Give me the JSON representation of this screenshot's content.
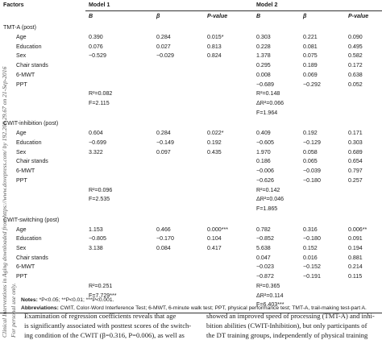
{
  "sidebar": {
    "lines": [
      "Clinical Interventions in Aging downloaded from https://www.dovepress.com/ by 192.208.29.67 on 21-Sep-2016",
      "For personal use only."
    ]
  },
  "table": {
    "header": {
      "factors": "Factors",
      "model1": "Model 1",
      "model2": "Model 2",
      "cols": [
        "B",
        "β",
        "P-value",
        "B",
        "β",
        "P-value"
      ]
    },
    "sections": [
      {
        "title": "TMT-A (post)",
        "rows": [
          {
            "name": "Age",
            "cells": [
              "0.390",
              "0.284",
              "0.015*",
              "0.303",
              "0.221",
              "0.090"
            ]
          },
          {
            "name": "Education",
            "cells": [
              "0.076",
              "0.027",
              "0.813",
              "0.228",
              "0.081",
              "0.495"
            ]
          },
          {
            "name": "Sex",
            "cells": [
              "−0.529",
              "−0.029",
              "0.824",
              "1.378",
              "0.075",
              "0.582"
            ]
          },
          {
            "name": "Chair stands",
            "cells": [
              "",
              "",
              "",
              "0.295",
              "0.189",
              "0.172"
            ]
          },
          {
            "name": "6-MWT",
            "cells": [
              "",
              "",
              "",
              "0.008",
              "0.069",
              "0.638"
            ]
          },
          {
            "name": "PPT",
            "cells": [
              "",
              "",
              "",
              "−0.689",
              "−0.292",
              "0.052"
            ]
          }
        ],
        "stats1": [
          "R²=0.082",
          "F=2.115"
        ],
        "stats2": [
          "R²=0.148",
          "ΔR²=0.066",
          "F=1.964"
        ]
      },
      {
        "title": "CWIT-inhibition (post)",
        "rows": [
          {
            "name": "Age",
            "cells": [
              "0.604",
              "0.284",
              "0.022*",
              "0.409",
              "0.192",
              "0.171"
            ]
          },
          {
            "name": "Education",
            "cells": [
              "−0.699",
              "−0.149",
              "0.192",
              "−0.605",
              "−0.129",
              "0.303"
            ]
          },
          {
            "name": "Sex",
            "cells": [
              "3.322",
              "0.097",
              "0.435",
              "1.970",
              "0.058",
              "0.689"
            ]
          },
          {
            "name": "Chair stands",
            "cells": [
              "",
              "",
              "",
              "0.186",
              "0.065",
              "0.654"
            ]
          },
          {
            "name": "6-MWT",
            "cells": [
              "",
              "",
              "",
              "−0.006",
              "−0.039",
              "0.797"
            ]
          },
          {
            "name": "PPT",
            "cells": [
              "",
              "",
              "",
              "−0.626",
              "−0.180",
              "0.257"
            ]
          }
        ],
        "stats1": [
          "R²=0.096",
          "F=2.535"
        ],
        "stats2": [
          "R²=0.142",
          "ΔR²=0.046",
          "F=1.865"
        ]
      },
      {
        "title": "CWIT-switching (post)",
        "rows": [
          {
            "name": "Age",
            "cells": [
              "1.153",
              "0.466",
              "0.000***",
              "0.782",
              "0.316",
              "0.006**"
            ]
          },
          {
            "name": "Education",
            "cells": [
              "−0.805",
              "−0.170",
              "0.104",
              "−0.852",
              "−0.180",
              "0.091"
            ]
          },
          {
            "name": "Sex",
            "cells": [
              "3.138",
              "0.084",
              "0.417",
              "5.638",
              "0.152",
              "0.194"
            ]
          },
          {
            "name": "Chair stands",
            "cells": [
              "",
              "",
              "",
              "0.047",
              "0.016",
              "0.881"
            ]
          },
          {
            "name": "6-MWT",
            "cells": [
              "",
              "",
              "",
              "−0.023",
              "−0.152",
              "0.214"
            ]
          },
          {
            "name": "PPT",
            "cells": [
              "",
              "",
              "",
              "−0.872",
              "−0.191",
              "0.115"
            ]
          }
        ],
        "stats1": [
          "R²=0.251",
          "F=7.729***"
        ],
        "stats2": [
          "R²=0.365",
          "ΔR²=0.114",
          "F=6.403***"
        ]
      }
    ]
  },
  "notes": {
    "notes_label": "Notes:",
    "notes_text": " *P<0.05; **P<0.01; ***P<0.001.",
    "abbr_label": "Abbreviations:",
    "abbr_text": " CWIT, Color-Word Interference Test; 6-MWT, 6-minute walk test; PPT, physical performance test; TMT-A, trail-making test-part A."
  },
  "body": {
    "left": [
      "Examination of regression coefficients reveals that age",
      "is significantly associated with posttest scores of the switch-",
      "ing condition of the CWIT (β=0.316, P=0.006), as well as"
    ],
    "right": [
      "showed an improved speed of processing (TMT-A) and inhi-",
      "bition abilities (CWIT-Inhibition), but only participants of",
      "the DT training groups, independently of physical training"
    ]
  }
}
